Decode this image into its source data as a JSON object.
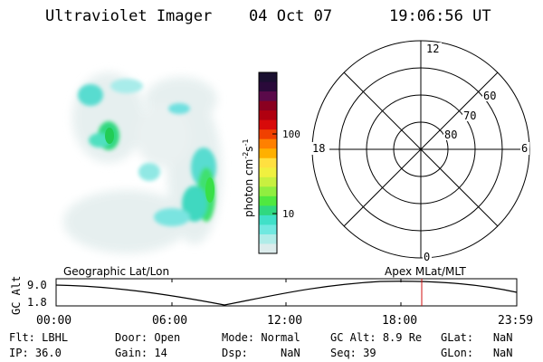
{
  "header": {
    "title": "Ultraviolet Imager",
    "date": "04 Oct 07",
    "time": "19:06:56 UT"
  },
  "colorbar": {
    "label_unit": "photon cm",
    "label_exp1": "-2",
    "label_mid": "s",
    "label_exp2": "-1",
    "ticks": [
      "100",
      "10"
    ],
    "colors": [
      "#1a1030",
      "#2a0a3a",
      "#5a0a4a",
      "#8a0020",
      "#b00010",
      "#d80a0a",
      "#f04000",
      "#ff8000",
      "#ffb000",
      "#ffe040",
      "#f0f040",
      "#c8f040",
      "#90ee40",
      "#50e840",
      "#30d880",
      "#40e0c8",
      "#70e8e0",
      "#b0ece8",
      "#dcecec"
    ]
  },
  "polar": {
    "mlt_labels": {
      "top": "12",
      "left": "18",
      "right": "6",
      "bottom": "0"
    },
    "lat_labels": [
      "60",
      "70",
      "80"
    ]
  },
  "timeline": {
    "y_label": "GC Alt",
    "y_ticks": [
      "9.0",
      "1.8"
    ],
    "left_title": "Geographic Lat/Lon",
    "right_title": "Apex MLat/MLT",
    "x_ticks": [
      "00:00",
      "06:00",
      "12:00",
      "18:00",
      "23:59"
    ],
    "marker_color": "#d01010"
  },
  "footer": {
    "row1": [
      {
        "label": "Flt:",
        "value": "LBHL"
      },
      {
        "label": "Door:",
        "value": "Open"
      },
      {
        "label": "Mode:",
        "value": "Normal"
      },
      {
        "label": "GC Alt:",
        "value": "8.9 Re"
      },
      {
        "label": "GLat:",
        "value": "NaN"
      }
    ],
    "row2": [
      {
        "label": "IP:",
        "value": "36.0"
      },
      {
        "label": "Gain:",
        "value": "14"
      },
      {
        "label": "Dsp:",
        "value": "NaN"
      },
      {
        "label": "Seq:",
        "value": "39"
      },
      {
        "label": "GLon:",
        "value": "NaN"
      }
    ]
  }
}
